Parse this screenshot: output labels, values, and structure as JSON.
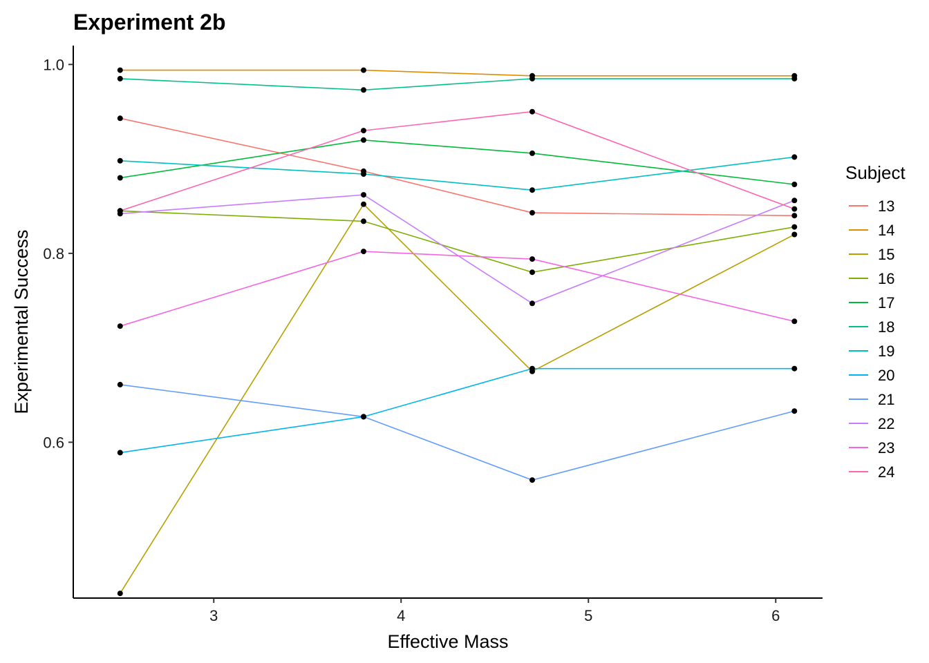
{
  "chart_data": {
    "type": "line",
    "title": "Experiment 2b",
    "xlabel": "Effective Mass",
    "ylabel": "Experimental Success",
    "xlim": [
      2.25,
      6.25
    ],
    "ylim": [
      0.435,
      1.02
    ],
    "x_ticks": [
      "3",
      "4",
      "5",
      "6"
    ],
    "x_tick_values": [
      3,
      4,
      5,
      6
    ],
    "y_ticks": [
      "0.6",
      "0.8",
      "1.0"
    ],
    "y_tick_values": [
      0.6,
      0.8,
      1.0
    ],
    "x": [
      2.5,
      3.8,
      4.7,
      6.1
    ],
    "grid": false,
    "legend": {
      "title": "Subject",
      "position": "right"
    },
    "point_color": "#000000",
    "series": [
      {
        "name": "13",
        "color": "#F8766D",
        "values": [
          0.943,
          0.887,
          0.843,
          0.84
        ]
      },
      {
        "name": "14",
        "color": "#DE8C00",
        "values": [
          0.994,
          0.994,
          0.988,
          0.988
        ]
      },
      {
        "name": "15",
        "color": "#B79F00",
        "values": [
          0.44,
          0.852,
          0.675,
          0.82
        ]
      },
      {
        "name": "16",
        "color": "#7CAE00",
        "values": [
          0.845,
          0.834,
          0.78,
          0.828
        ]
      },
      {
        "name": "17",
        "color": "#00BA38",
        "values": [
          0.88,
          0.92,
          0.906,
          0.873
        ]
      },
      {
        "name": "18",
        "color": "#00C08B",
        "values": [
          0.985,
          0.973,
          0.985,
          0.985
        ]
      },
      {
        "name": "19",
        "color": "#00BFC4",
        "values": [
          0.898,
          0.884,
          0.867,
          0.902
        ]
      },
      {
        "name": "20",
        "color": "#00B4F0",
        "values": [
          0.589,
          0.627,
          0.678,
          0.678
        ]
      },
      {
        "name": "21",
        "color": "#619CFF",
        "values": [
          0.661,
          0.627,
          0.56,
          0.633
        ]
      },
      {
        "name": "22",
        "color": "#C77CFF",
        "values": [
          0.842,
          0.862,
          0.747,
          0.856
        ]
      },
      {
        "name": "23",
        "color": "#F564E3",
        "values": [
          0.723,
          0.802,
          0.794,
          0.728
        ]
      },
      {
        "name": "24",
        "color": "#FF64B0",
        "values": [
          0.845,
          0.93,
          0.95,
          0.847
        ]
      }
    ]
  }
}
